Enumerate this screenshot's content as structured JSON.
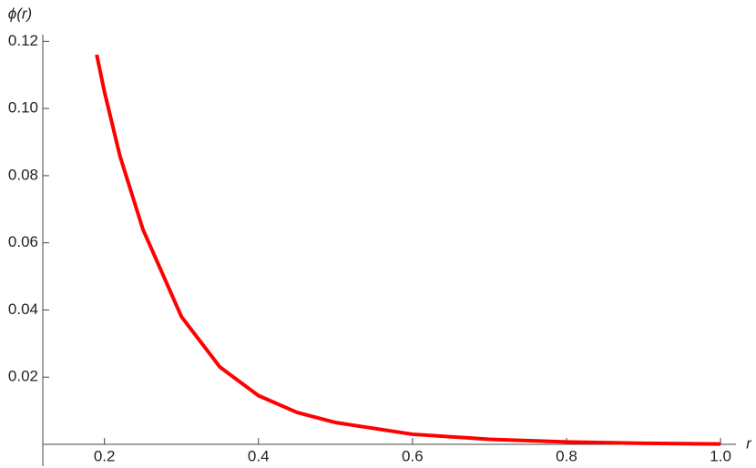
{
  "chart_data": {
    "type": "line",
    "x_label": "r",
    "y_label": "ϕ(r)",
    "x": [
      0.19,
      0.2,
      0.22,
      0.25,
      0.3,
      0.35,
      0.4,
      0.45,
      0.5,
      0.6,
      0.7,
      0.8,
      0.9,
      1.0
    ],
    "series": [
      {
        "color": "#ff0000",
        "values": [
          0.116,
          0.105,
          0.086,
          0.064,
          0.038,
          0.023,
          0.0145,
          0.0095,
          0.0065,
          0.003,
          0.0015,
          0.0007,
          0.0003,
          0.0001
        ]
      }
    ],
    "xlim": [
      0.12,
      1.02
    ],
    "ylim": [
      0,
      0.122
    ],
    "xticks": [
      0.2,
      0.4,
      0.6,
      0.8,
      {
        "value": 1.0,
        "label": "1.0"
      }
    ],
    "yticks": [
      0.02,
      0.04,
      0.06,
      0.08,
      {
        "value": 0.1,
        "label": "0.10"
      },
      0.12
    ]
  }
}
